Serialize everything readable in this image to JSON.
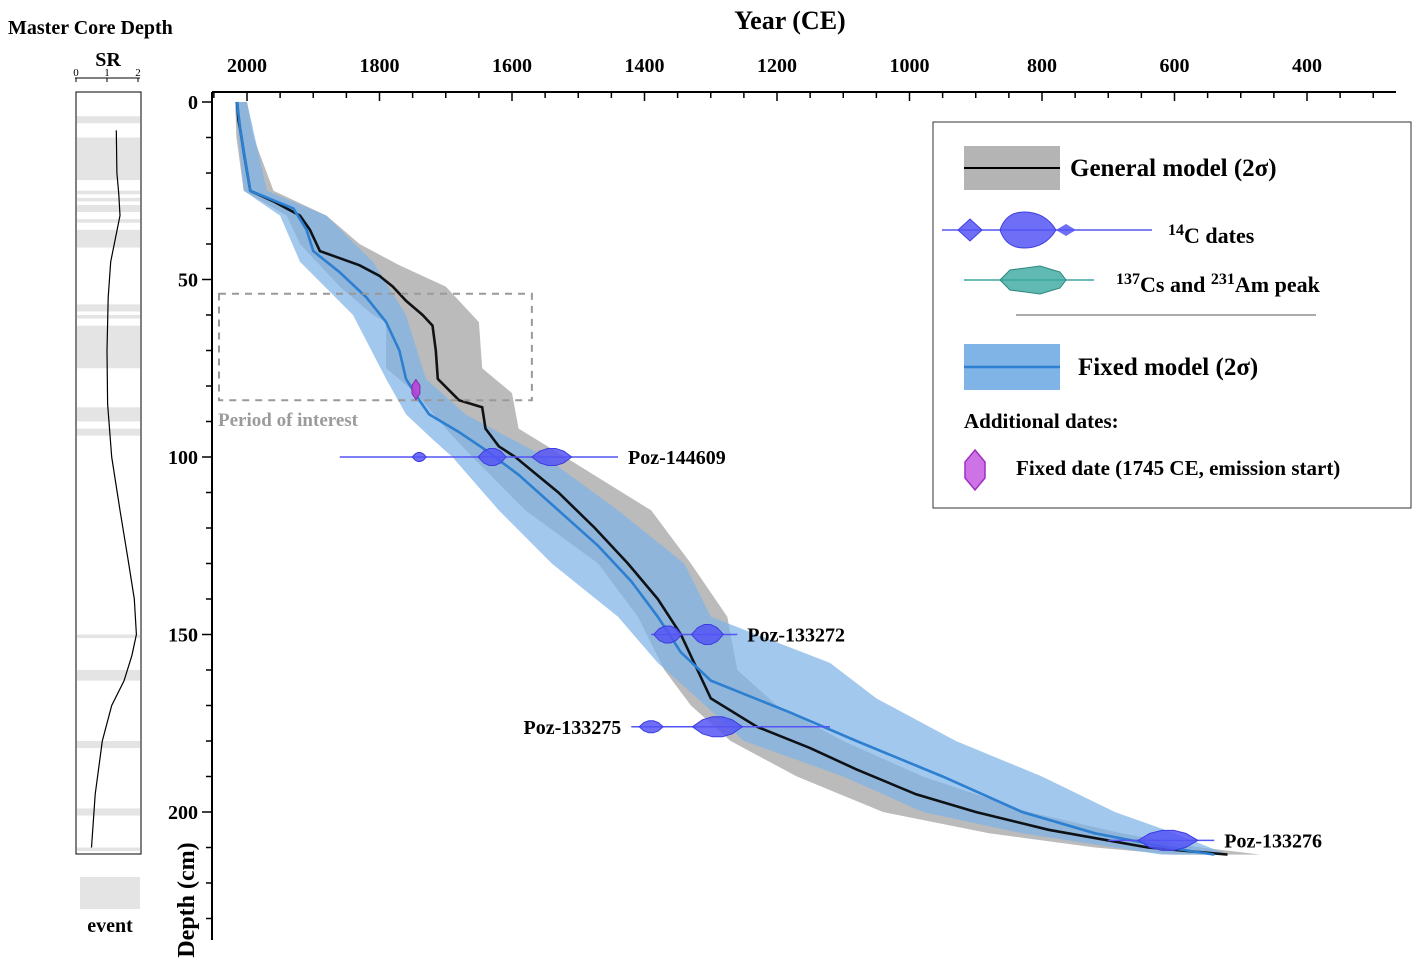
{
  "chart_data": [
    {
      "type": "line",
      "title": "Master Core Depth",
      "panel_label": "SR",
      "xlim": [
        0,
        2
      ],
      "xticks": [
        0,
        1,
        2
      ],
      "depth_range": [
        0,
        212
      ],
      "sr_profile": [
        {
          "depth": 8,
          "sr": 1.3
        },
        {
          "depth": 20,
          "sr": 1.32
        },
        {
          "depth": 26,
          "sr": 1.38
        },
        {
          "depth": 32,
          "sr": 1.42
        },
        {
          "depth": 38,
          "sr": 1.28
        },
        {
          "depth": 45,
          "sr": 1.12
        },
        {
          "depth": 55,
          "sr": 1.04
        },
        {
          "depth": 70,
          "sr": 1.0
        },
        {
          "depth": 85,
          "sr": 1.02
        },
        {
          "depth": 100,
          "sr": 1.15
        },
        {
          "depth": 115,
          "sr": 1.42
        },
        {
          "depth": 130,
          "sr": 1.7
        },
        {
          "depth": 140,
          "sr": 1.88
        },
        {
          "depth": 150,
          "sr": 1.95
        },
        {
          "depth": 156,
          "sr": 1.8
        },
        {
          "depth": 163,
          "sr": 1.55
        },
        {
          "depth": 170,
          "sr": 1.15
        },
        {
          "depth": 180,
          "sr": 0.85
        },
        {
          "depth": 195,
          "sr": 0.62
        },
        {
          "depth": 210,
          "sr": 0.5
        }
      ],
      "event_layers": [
        [
          4,
          6
        ],
        [
          10,
          22
        ],
        [
          25,
          26
        ],
        [
          27,
          28
        ],
        [
          29,
          31
        ],
        [
          33,
          34
        ],
        [
          36,
          41
        ],
        [
          57,
          59
        ],
        [
          60,
          61
        ],
        [
          63,
          75
        ],
        [
          86,
          90
        ],
        [
          92,
          94
        ],
        [
          150,
          151
        ],
        [
          160,
          163
        ],
        [
          180,
          182
        ],
        [
          199,
          201
        ],
        [
          210,
          211
        ]
      ],
      "legend_label": "event"
    },
    {
      "type": "area",
      "title": "Year (CE)",
      "xlabel": "Year (CE)",
      "ylabel": "Depth (cm)",
      "xlim": [
        2050,
        270
      ],
      "ylim": [
        0,
        212
      ],
      "xticks": [
        2000,
        1800,
        1600,
        1400,
        1200,
        1000,
        800,
        600,
        400
      ],
      "yticks": [
        0,
        50,
        100,
        150,
        200
      ],
      "series": [
        {
          "name": "General model (2σ)",
          "color": "#000000",
          "band_color": "#b4b4b4",
          "median": [
            {
              "d": 0,
              "y": 2015
            },
            {
              "d": 5,
              "y": 2013
            },
            {
              "d": 8,
              "y": 2010
            },
            {
              "d": 15,
              "y": 2004
            },
            {
              "d": 25,
              "y": 1995
            },
            {
              "d": 28,
              "y": 1960
            },
            {
              "d": 32,
              "y": 1920
            },
            {
              "d": 36,
              "y": 1905
            },
            {
              "d": 40,
              "y": 1895
            },
            {
              "d": 42,
              "y": 1890
            },
            {
              "d": 44,
              "y": 1860
            },
            {
              "d": 46,
              "y": 1830
            },
            {
              "d": 49,
              "y": 1800
            },
            {
              "d": 52,
              "y": 1780
            },
            {
              "d": 56,
              "y": 1760
            },
            {
              "d": 60,
              "y": 1735
            },
            {
              "d": 63,
              "y": 1720
            },
            {
              "d": 70,
              "y": 1715
            },
            {
              "d": 78,
              "y": 1712
            },
            {
              "d": 84,
              "y": 1680
            },
            {
              "d": 86,
              "y": 1645
            },
            {
              "d": 92,
              "y": 1640
            },
            {
              "d": 97,
              "y": 1620
            },
            {
              "d": 100,
              "y": 1595
            },
            {
              "d": 110,
              "y": 1530
            },
            {
              "d": 120,
              "y": 1475
            },
            {
              "d": 130,
              "y": 1425
            },
            {
              "d": 140,
              "y": 1380
            },
            {
              "d": 150,
              "y": 1345
            },
            {
              "d": 160,
              "y": 1320
            },
            {
              "d": 168,
              "y": 1300
            },
            {
              "d": 176,
              "y": 1230
            },
            {
              "d": 182,
              "y": 1150
            },
            {
              "d": 188,
              "y": 1080
            },
            {
              "d": 195,
              "y": 990
            },
            {
              "d": 200,
              "y": 900
            },
            {
              "d": 205,
              "y": 790
            },
            {
              "d": 210,
              "y": 640
            },
            {
              "d": 212,
              "y": 520
            }
          ],
          "band": [
            {
              "d": 0,
              "lo": 2000,
              "hi": 2018
            },
            {
              "d": 10,
              "lo": 1990,
              "hi": 2016
            },
            {
              "d": 25,
              "lo": 1960,
              "hi": 2005
            },
            {
              "d": 32,
              "lo": 1880,
              "hi": 1940
            },
            {
              "d": 40,
              "lo": 1830,
              "hi": 1920
            },
            {
              "d": 46,
              "lo": 1770,
              "hi": 1890
            },
            {
              "d": 52,
              "lo": 1700,
              "hi": 1860
            },
            {
              "d": 60,
              "lo": 1660,
              "hi": 1810
            },
            {
              "d": 62,
              "lo": 1650,
              "hi": 1790
            },
            {
              "d": 75,
              "lo": 1645,
              "hi": 1790
            },
            {
              "d": 82,
              "lo": 1600,
              "hi": 1745
            },
            {
              "d": 92,
              "lo": 1590,
              "hi": 1700
            },
            {
              "d": 100,
              "lo": 1520,
              "hi": 1660
            },
            {
              "d": 115,
              "lo": 1390,
              "hi": 1580
            },
            {
              "d": 130,
              "lo": 1330,
              "hi": 1470
            },
            {
              "d": 145,
              "lo": 1275,
              "hi": 1410
            },
            {
              "d": 160,
              "lo": 1260,
              "hi": 1370
            },
            {
              "d": 170,
              "lo": 1200,
              "hi": 1330
            },
            {
              "d": 180,
              "lo": 1100,
              "hi": 1270
            },
            {
              "d": 190,
              "lo": 980,
              "hi": 1170
            },
            {
              "d": 200,
              "lo": 820,
              "hi": 1040
            },
            {
              "d": 206,
              "lo": 680,
              "hi": 880
            },
            {
              "d": 210,
              "lo": 560,
              "hi": 720
            },
            {
              "d": 212,
              "lo": 470,
              "hi": 600
            }
          ]
        },
        {
          "name": "Fixed model (2σ)",
          "color": "#2c7fd1",
          "band_color": "#80b3e6",
          "median": [
            {
              "d": 0,
              "y": 2015
            },
            {
              "d": 8,
              "y": 2010
            },
            {
              "d": 25,
              "y": 1995
            },
            {
              "d": 30,
              "y": 1930
            },
            {
              "d": 36,
              "y": 1910
            },
            {
              "d": 42,
              "y": 1900
            },
            {
              "d": 48,
              "y": 1860
            },
            {
              "d": 55,
              "y": 1820
            },
            {
              "d": 62,
              "y": 1790
            },
            {
              "d": 70,
              "y": 1770
            },
            {
              "d": 78,
              "y": 1760
            },
            {
              "d": 84,
              "y": 1740
            },
            {
              "d": 88,
              "y": 1725
            },
            {
              "d": 93,
              "y": 1680
            },
            {
              "d": 98,
              "y": 1640
            },
            {
              "d": 105,
              "y": 1590
            },
            {
              "d": 115,
              "y": 1530
            },
            {
              "d": 125,
              "y": 1470
            },
            {
              "d": 135,
              "y": 1420
            },
            {
              "d": 145,
              "y": 1380
            },
            {
              "d": 155,
              "y": 1345
            },
            {
              "d": 163,
              "y": 1300
            },
            {
              "d": 172,
              "y": 1180
            },
            {
              "d": 180,
              "y": 1080
            },
            {
              "d": 190,
              "y": 950
            },
            {
              "d": 200,
              "y": 830
            },
            {
              "d": 206,
              "y": 720
            },
            {
              "d": 210,
              "y": 610
            },
            {
              "d": 212,
              "y": 540
            }
          ],
          "band": [
            {
              "d": 0,
              "lo": 2000,
              "hi": 2018
            },
            {
              "d": 25,
              "lo": 1970,
              "hi": 2005
            },
            {
              "d": 32,
              "lo": 1880,
              "hi": 1950
            },
            {
              "d": 45,
              "lo": 1810,
              "hi": 1920
            },
            {
              "d": 60,
              "lo": 1760,
              "hi": 1840
            },
            {
              "d": 78,
              "lo": 1730,
              "hi": 1790
            },
            {
              "d": 88,
              "lo": 1670,
              "hi": 1760
            },
            {
              "d": 95,
              "lo": 1600,
              "hi": 1720
            },
            {
              "d": 100,
              "lo": 1550,
              "hi": 1690
            },
            {
              "d": 115,
              "lo": 1440,
              "hi": 1620
            },
            {
              "d": 130,
              "lo": 1340,
              "hi": 1540
            },
            {
              "d": 145,
              "lo": 1300,
              "hi": 1440
            },
            {
              "d": 158,
              "lo": 1120,
              "hi": 1380
            },
            {
              "d": 168,
              "lo": 1050,
              "hi": 1320
            },
            {
              "d": 180,
              "lo": 930,
              "hi": 1250
            },
            {
              "d": 190,
              "lo": 800,
              "hi": 1100
            },
            {
              "d": 200,
              "lo": 690,
              "hi": 980
            },
            {
              "d": 206,
              "lo": 600,
              "hi": 830
            },
            {
              "d": 212,
              "lo": 520,
              "hi": 620
            }
          ]
        }
      ],
      "c14_dates": [
        {
          "label": "Poz-144609",
          "depth": 100,
          "range": [
            1860,
            1440
          ],
          "lobes": [
            {
              "y": 1740,
              "w": 14,
              "h": 9
            },
            {
              "y": 1630,
              "w": 28,
              "h": 17
            },
            {
              "y": 1540,
              "w": 40,
              "h": 17
            }
          ]
        },
        {
          "label": "Poz-133272",
          "depth": 150,
          "range": [
            1390,
            1260
          ],
          "lobes": [
            {
              "y": 1365,
              "w": 28,
              "h": 17
            },
            {
              "y": 1305,
              "w": 32,
              "h": 20
            }
          ]
        },
        {
          "label": "Poz-133275",
          "depth": 176,
          "range": [
            1420,
            1120
          ],
          "lobes": [
            {
              "y": 1390,
              "w": 24,
              "h": 12
            },
            {
              "y": 1290,
              "w": 50,
              "h": 20
            }
          ]
        },
        {
          "label": "Poz-133276",
          "depth": 208,
          "range": [
            700,
            540
          ],
          "lobes": [
            {
              "y": 610,
              "w": 60,
              "h": 20
            }
          ]
        }
      ],
      "fixed_date": {
        "year": 1745,
        "depth": 81,
        "color": "#b642d6"
      },
      "period_of_interest": {
        "label": "Period of interest",
        "year_range": [
          2045,
          1570
        ],
        "depth_range": [
          54,
          84
        ]
      },
      "legend": {
        "general_model": "General model (2σ)",
        "c14_dates": "14C dates",
        "c14_sup": "14",
        "c14_rest": "C dates",
        "peaks": "137Cs and 231Am peak",
        "peaks_sup1": "137",
        "peaks_mid": "Cs and ",
        "peaks_sup2": "231",
        "peaks_rest": "Am peak",
        "fixed_model": "Fixed model (2σ)",
        "additional_dates": "Additional dates:",
        "fixed_date": "Fixed date (1745 CE, emission start)",
        "c14_color": "#5555f5",
        "peak_color": "#3aa8a0"
      }
    }
  ]
}
